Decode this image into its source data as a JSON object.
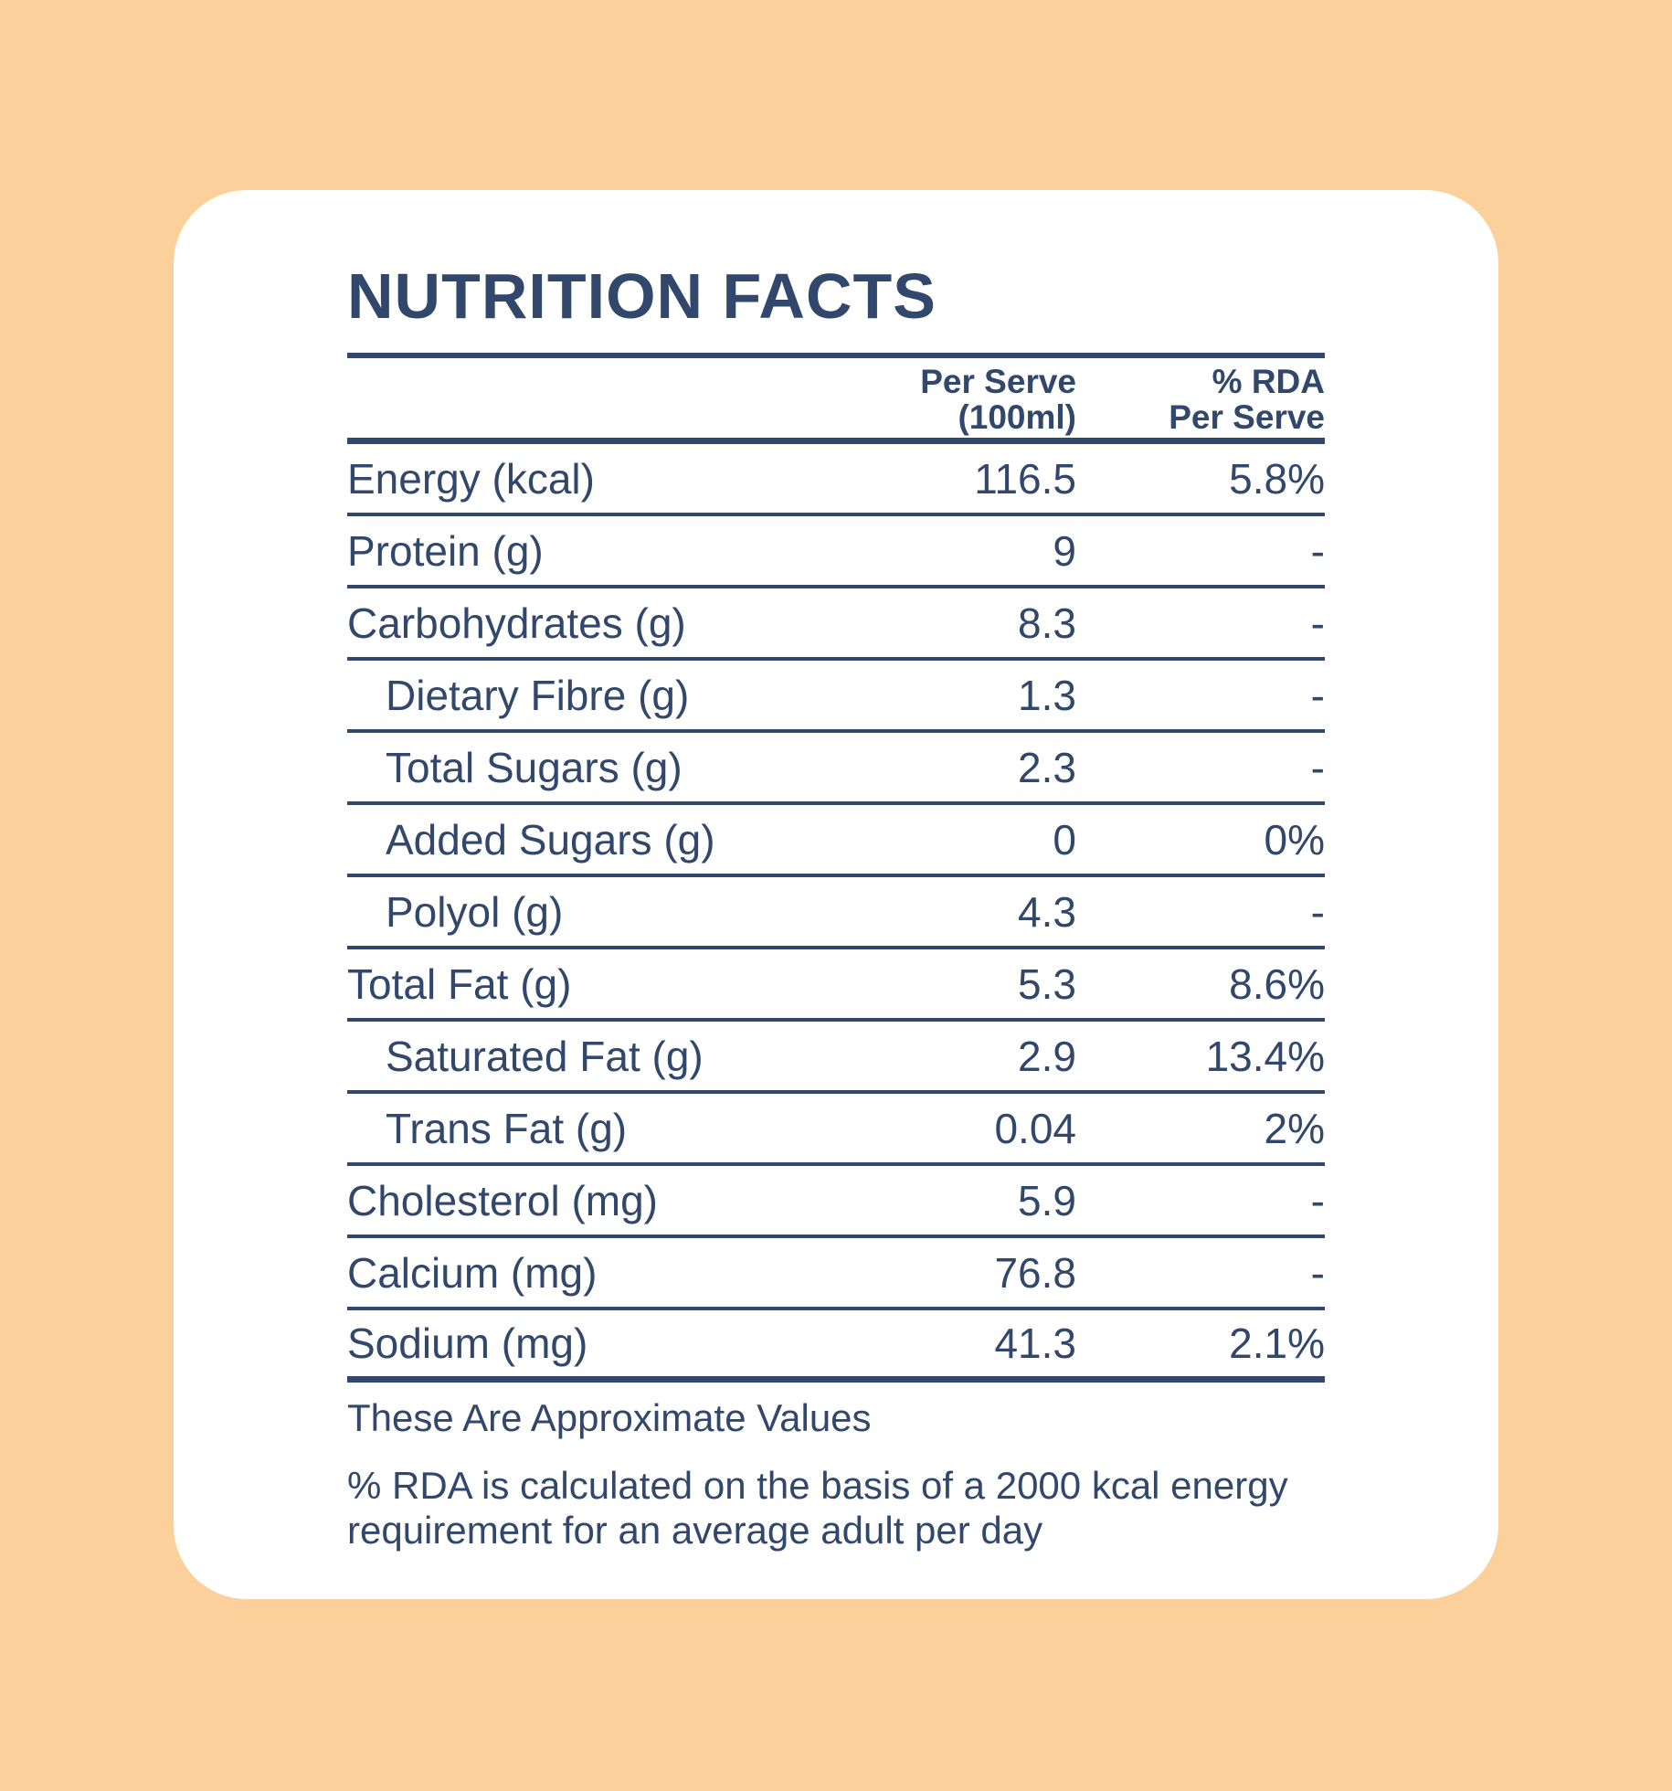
{
  "colors": {
    "background": "#FCD09B",
    "card": "#FFFFFF",
    "ink": "#31476B"
  },
  "title": "NUTRITION FACTS",
  "table": {
    "header": {
      "per_serve_line1": "Per Serve",
      "per_serve_line2": "(100ml)",
      "rda_line1": "% RDA",
      "rda_line2": "Per Serve"
    },
    "rows": [
      {
        "label": "Energy (kcal)",
        "per_serve": "116.5",
        "rda": "5.8%",
        "indent": false
      },
      {
        "label": "Protein (g)",
        "per_serve": "9",
        "rda": "-",
        "indent": false
      },
      {
        "label": "Carbohydrates (g)",
        "per_serve": "8.3",
        "rda": "-",
        "indent": false
      },
      {
        "label": "Dietary Fibre (g)",
        "per_serve": "1.3",
        "rda": "-",
        "indent": true
      },
      {
        "label": "Total Sugars (g)",
        "per_serve": "2.3",
        "rda": "-",
        "indent": true
      },
      {
        "label": "Added Sugars (g)",
        "per_serve": "0",
        "rda": "0%",
        "indent": true
      },
      {
        "label": "Polyol (g)",
        "per_serve": "4.3",
        "rda": "-",
        "indent": true
      },
      {
        "label": "Total Fat (g)",
        "per_serve": "5.3",
        "rda": "8.6%",
        "indent": false
      },
      {
        "label": "Saturated Fat (g)",
        "per_serve": "2.9",
        "rda": "13.4%",
        "indent": true
      },
      {
        "label": "Trans Fat (g)",
        "per_serve": "0.04",
        "rda": "2%",
        "indent": true
      },
      {
        "label": "Cholesterol (mg)",
        "per_serve": "5.9",
        "rda": "-",
        "indent": false
      },
      {
        "label": "Calcium (mg)",
        "per_serve": "76.8",
        "rda": "-",
        "indent": false
      },
      {
        "label": "Sodium (mg)",
        "per_serve": "41.3",
        "rda": "2.1%",
        "indent": false
      }
    ]
  },
  "footnotes": {
    "approximate": "These Are Approximate Values",
    "rda_basis": "% RDA is calculated on the basis of a 2000 kcal energy requirement for an average adult per day"
  }
}
